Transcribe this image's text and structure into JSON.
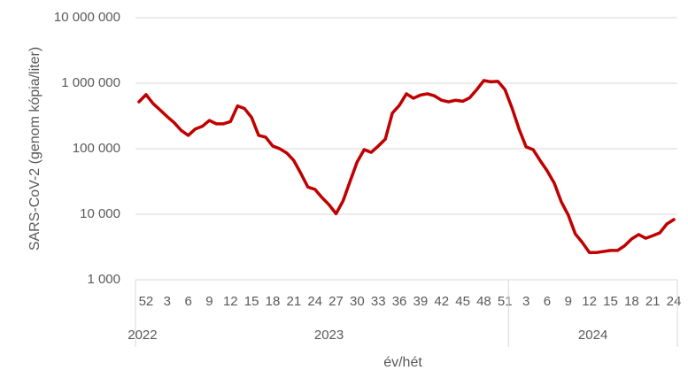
{
  "chart_data": {
    "type": "line",
    "y_title": "SARS-CoV-2 (genom kópia/liter)",
    "x_title": "év/hét",
    "log_scale": true,
    "grid": true,
    "ylim": [
      1000,
      10000000
    ],
    "yticks": [
      {
        "value": 1000,
        "label": "1 000"
      },
      {
        "value": 10000,
        "label": "10 000"
      },
      {
        "value": 100000,
        "label": "100 000"
      },
      {
        "value": 1000000,
        "label": "1 000 000"
      },
      {
        "value": 10000000,
        "label": "10 000 000"
      }
    ],
    "groups": [
      {
        "name": "2022",
        "size": 2
      },
      {
        "name": "2023",
        "size": 51
      },
      {
        "name": "2024",
        "size": 24
      }
    ],
    "categories": [
      null,
      "52",
      null,
      null,
      "3",
      null,
      null,
      "6",
      null,
      null,
      "9",
      null,
      null,
      "12",
      null,
      null,
      "15",
      null,
      null,
      "18",
      null,
      null,
      "21",
      null,
      null,
      "24",
      null,
      null,
      "27",
      null,
      null,
      "30",
      null,
      null,
      "33",
      null,
      null,
      "36",
      null,
      null,
      "39",
      null,
      null,
      "42",
      null,
      null,
      "45",
      null,
      null,
      "48",
      null,
      null,
      "51",
      null,
      null,
      "3",
      null,
      null,
      "6",
      null,
      null,
      "9",
      null,
      null,
      "12",
      null,
      null,
      "15",
      null,
      null,
      "18",
      null,
      null,
      "21",
      null,
      null,
      "24"
    ],
    "series": [
      {
        "name": "SARS-CoV-2",
        "color": "#c00000",
        "values": [
          520000,
          670000,
          490000,
          390000,
          310000,
          250000,
          190000,
          160000,
          200000,
          220000,
          270000,
          240000,
          240000,
          260000,
          450000,
          410000,
          300000,
          160000,
          150000,
          110000,
          100000,
          86000,
          66000,
          42000,
          26000,
          24000,
          18000,
          14000,
          10200,
          16000,
          32000,
          63000,
          97000,
          88000,
          110000,
          140000,
          350000,
          460000,
          690000,
          590000,
          660000,
          690000,
          640000,
          550000,
          520000,
          550000,
          530000,
          600000,
          800000,
          1100000,
          1050000,
          1070000,
          800000,
          420000,
          200000,
          107000,
          97000,
          66000,
          46000,
          30000,
          15500,
          9700,
          5000,
          3700,
          2600,
          2600,
          2700,
          2800,
          2800,
          3300,
          4200,
          4900,
          4300,
          4700,
          5200,
          7100,
          8300
        ]
      }
    ]
  }
}
